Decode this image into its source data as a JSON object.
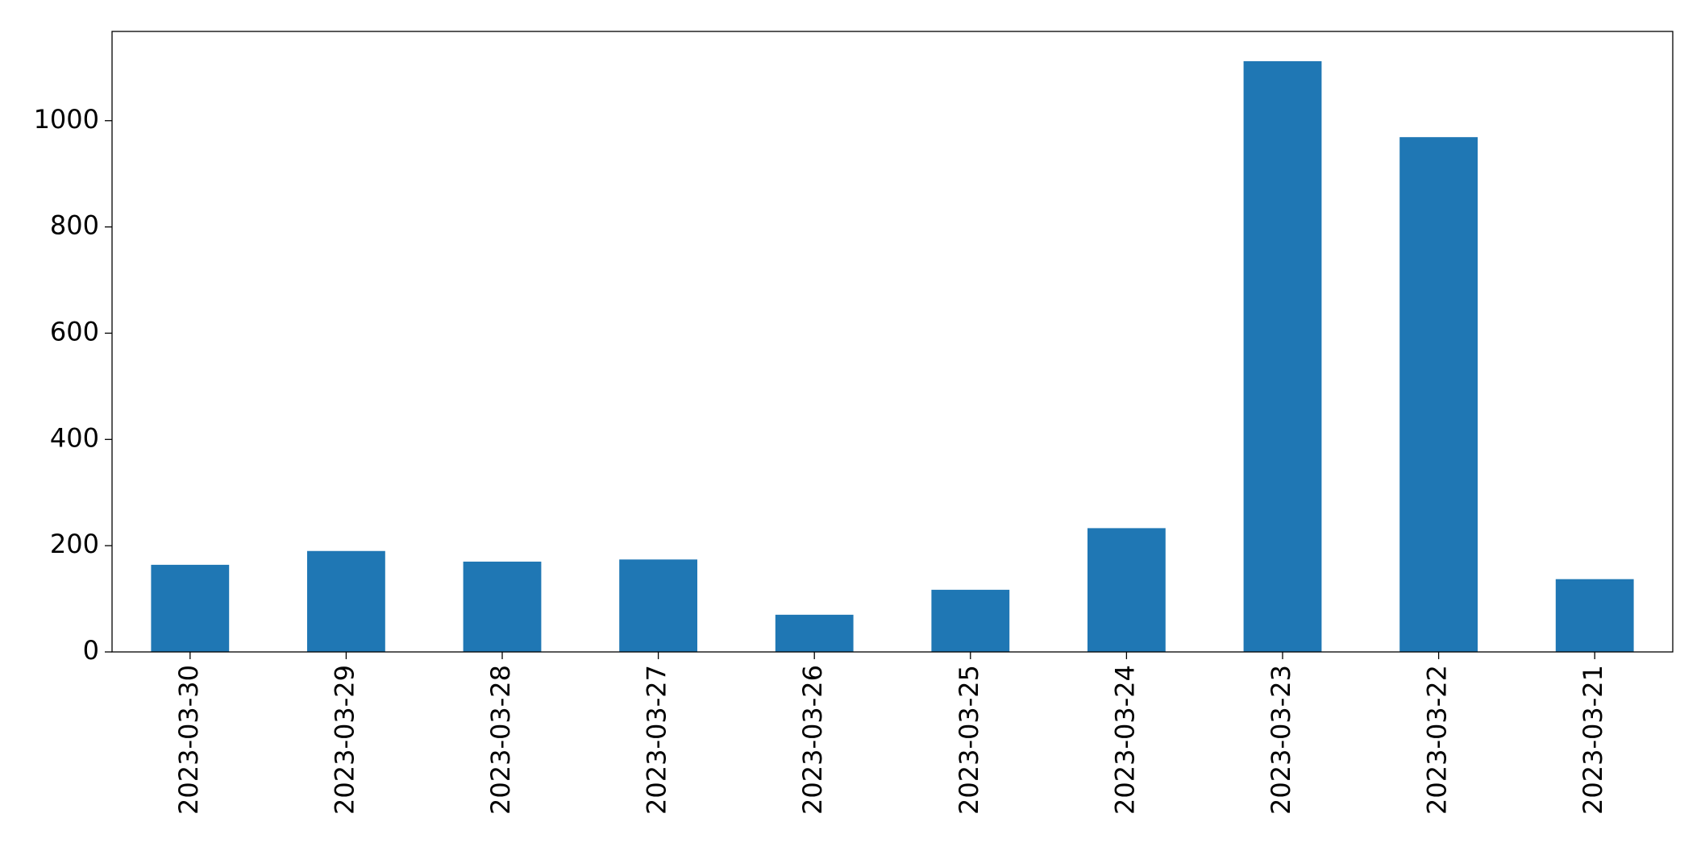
{
  "chart_data": {
    "type": "bar",
    "categories": [
      "2023-03-30",
      "2023-03-29",
      "2023-03-28",
      "2023-03-27",
      "2023-03-26",
      "2023-03-25",
      "2023-03-24",
      "2023-03-23",
      "2023-03-22",
      "2023-03-21"
    ],
    "values": [
      164,
      190,
      170,
      174,
      70,
      117,
      233,
      1112,
      969,
      137
    ],
    "color": "#1f77b4",
    "ylim": [
      0,
      1168
    ],
    "yticks": [
      0,
      200,
      400,
      600,
      800,
      1000
    ],
    "grid": false
  }
}
